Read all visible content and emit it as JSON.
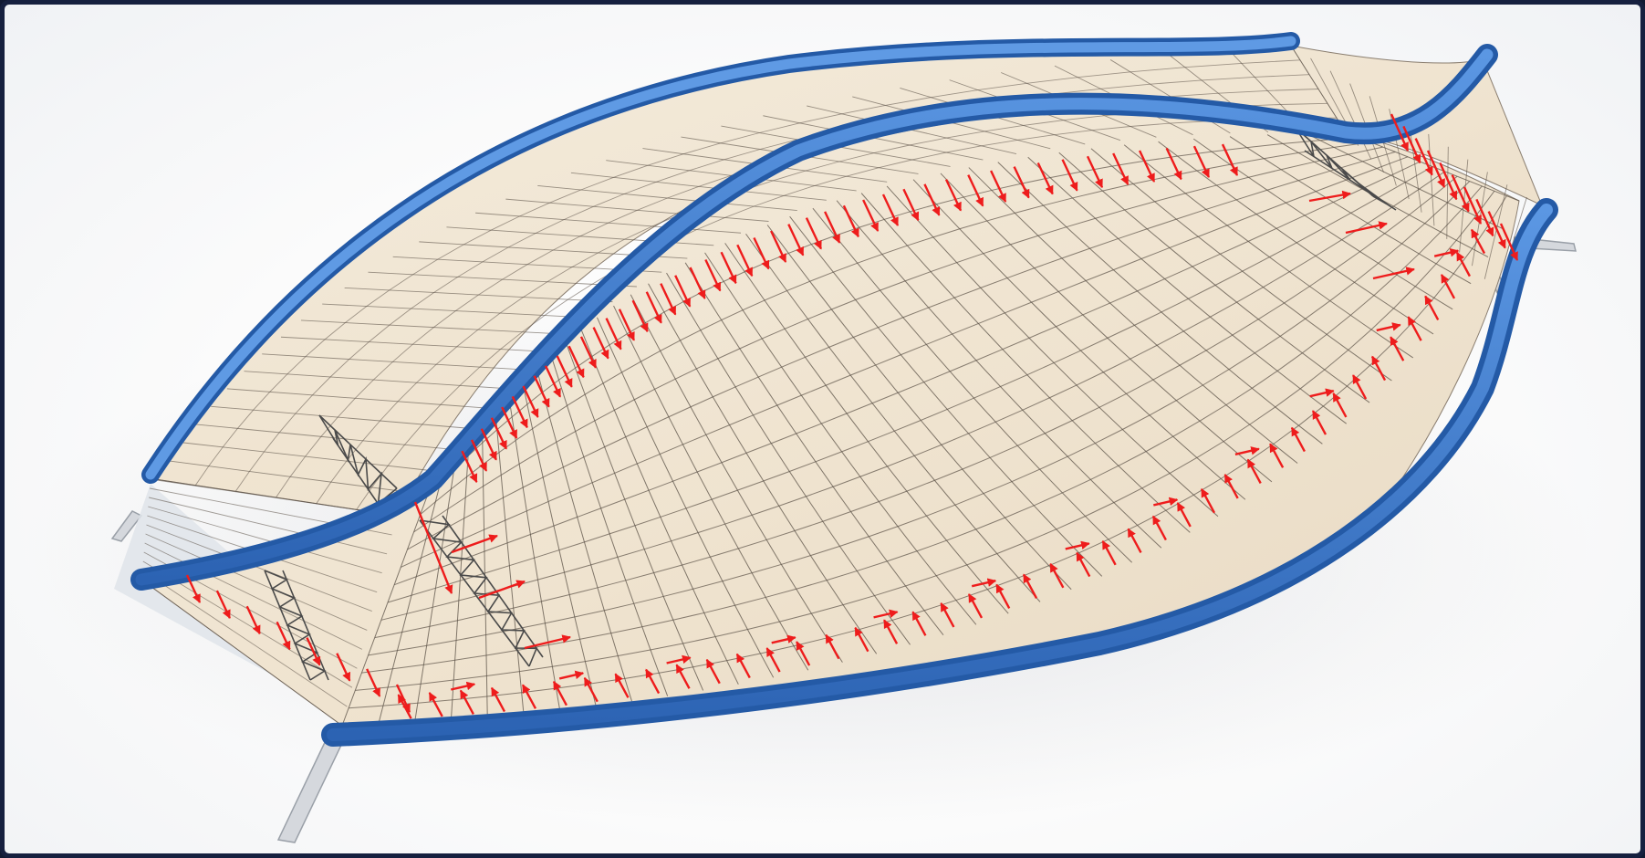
{
  "figure": {
    "kind": "structural-roof-axonometric",
    "colors": {
      "frame": "#16203f",
      "background": "#ffffff",
      "beam": "#3f7fd4",
      "beam_dark": "#245aa6",
      "membrane": "#f1e6d4",
      "grid": "#5b5147",
      "force_arrow": "#ee1c1c",
      "support": "#d5d8dd"
    }
  }
}
